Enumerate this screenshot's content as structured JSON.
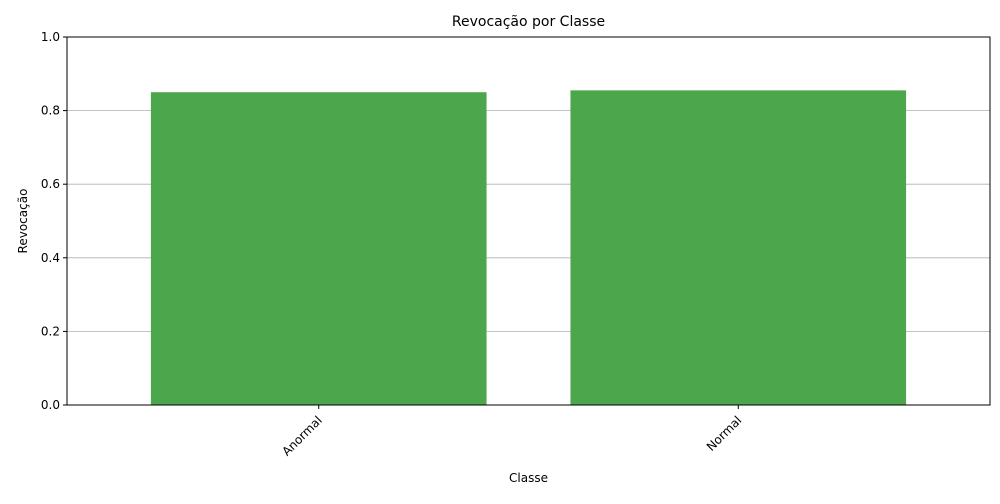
{
  "chart_data": {
    "type": "bar",
    "title": "Revocação por Classe",
    "xlabel": "Classe",
    "ylabel": "Revocação",
    "categories": [
      "Anormal",
      "Normal"
    ],
    "values": [
      0.85,
      0.855
    ],
    "ylim": [
      0,
      1.0
    ],
    "yticks": [
      "0.0",
      "0.2",
      "0.4",
      "0.6",
      "0.8",
      "1.0"
    ],
    "bar_color": "#4ca64c",
    "grid": "y-axis only",
    "x_tick_rotation_deg": 45,
    "legend": "none"
  }
}
